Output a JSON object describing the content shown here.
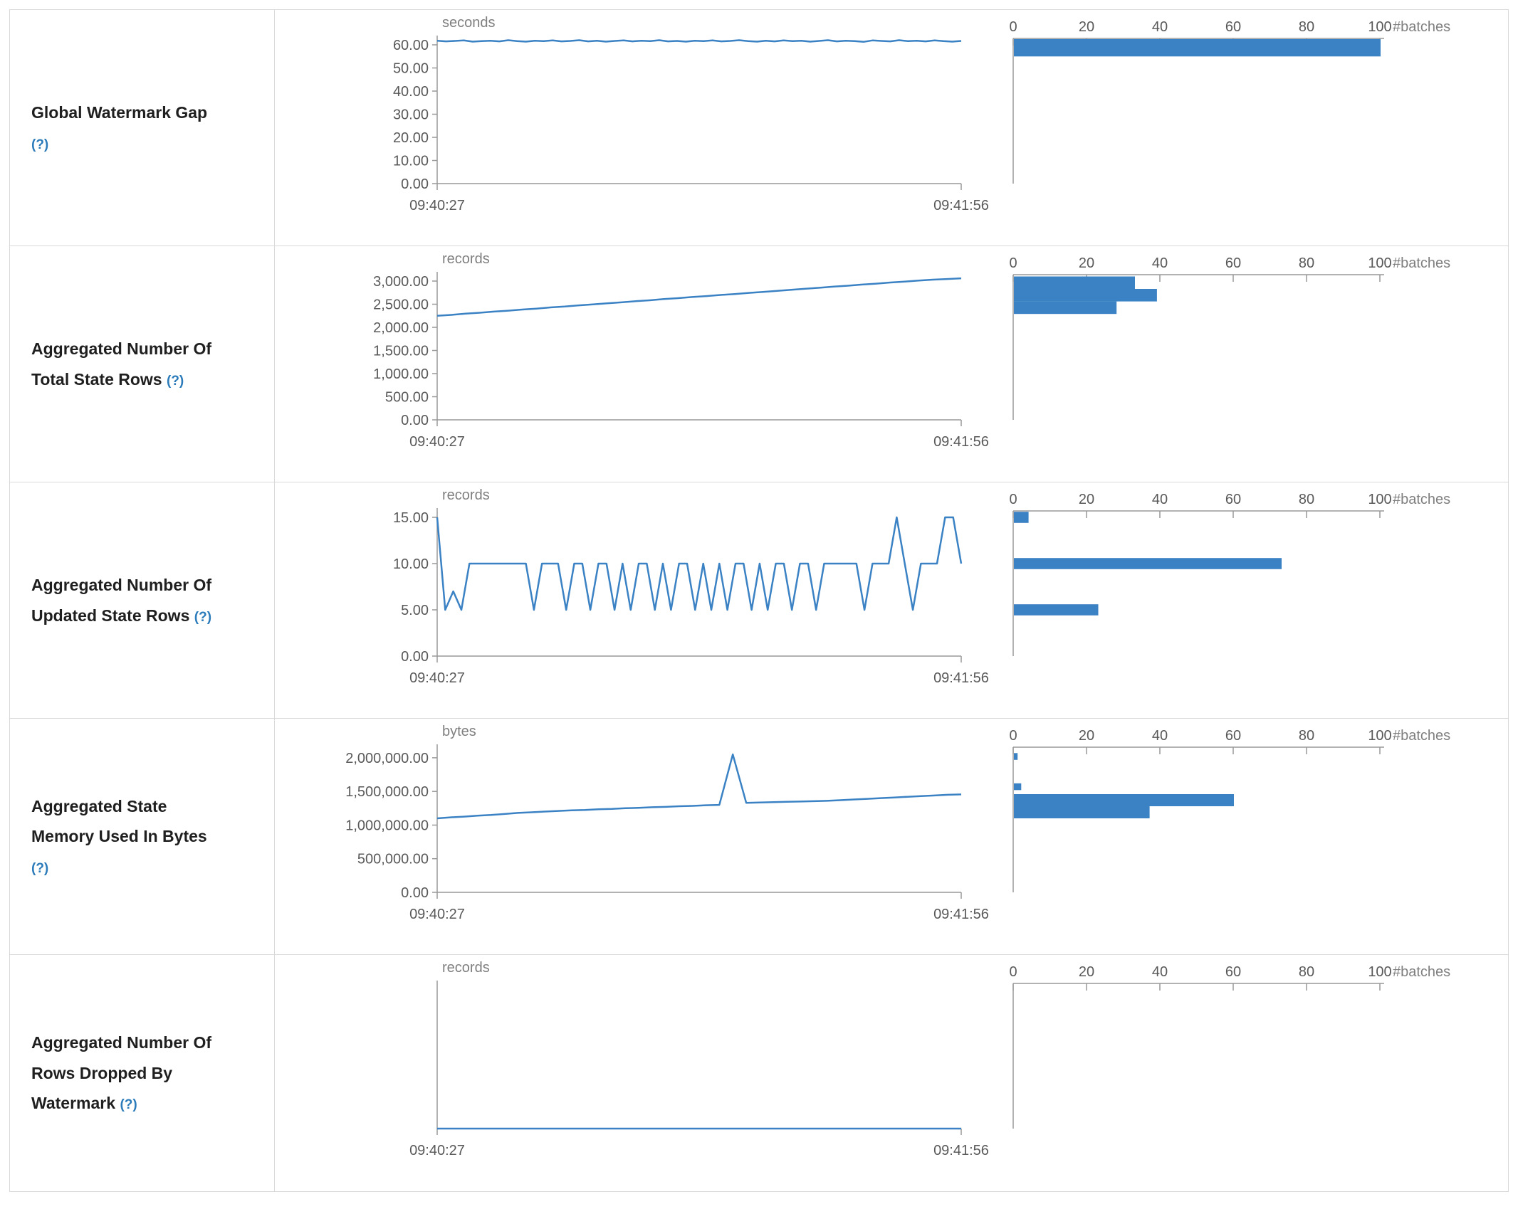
{
  "accent": "#3b82c4",
  "rows": [
    {
      "label": "Global Watermark Gap",
      "help_label": "(?)"
    },
    {
      "label": "Aggregated Number Of Total State Rows",
      "help_label": "(?)"
    },
    {
      "label": "Aggregated Number Of Updated State Rows",
      "help_label": "(?)"
    },
    {
      "label": "Aggregated State Memory Used In Bytes",
      "help_label": "(?)"
    },
    {
      "label": "Aggregated Number Of Rows Dropped By Watermark",
      "help_label": "(?)"
    }
  ],
  "chart_data": [
    {
      "type": "line",
      "title": "Global Watermark Gap",
      "unit": "seconds",
      "x_range": [
        "09:40:27",
        "09:41:56"
      ],
      "ylim": [
        0,
        64
      ],
      "y_ticks": [
        0,
        10,
        20,
        30,
        40,
        50,
        60
      ],
      "y_tick_labels": [
        "0.00",
        "10.00",
        "20.00",
        "30.00",
        "40.00",
        "50.00",
        "60.00"
      ],
      "values": [
        61.8,
        61.5,
        61.7,
        61.9,
        61.4,
        61.6,
        61.8,
        61.5,
        62.0,
        61.6,
        61.4,
        61.8,
        61.6,
        61.9,
        61.5,
        61.7,
        62.0,
        61.5,
        61.8,
        61.4,
        61.7,
        61.9,
        61.5,
        61.8,
        61.6,
        62.0,
        61.5,
        61.7,
        61.4,
        61.8,
        61.6,
        61.9,
        61.5,
        61.7,
        62.0,
        61.6,
        61.4,
        61.8,
        61.5,
        61.9,
        61.6,
        61.8,
        61.4,
        61.7,
        62.0,
        61.5,
        61.8,
        61.6,
        61.3,
        61.9,
        61.7,
        61.5,
        62.0,
        61.6,
        61.8,
        61.5,
        61.9,
        61.6,
        61.4,
        61.7
      ],
      "histogram": {
        "type": "bar",
        "xlabel": "#batches",
        "xlim": [
          0,
          100
        ],
        "x_ticks": [
          0,
          20,
          40,
          60,
          80,
          100
        ],
        "bins": [
          {
            "from": 64,
            "to": 55,
            "count": 100
          }
        ]
      }
    },
    {
      "type": "line",
      "title": "Aggregated Number Of Total State Rows",
      "unit": "records",
      "x_range": [
        "09:40:27",
        "09:41:56"
      ],
      "ylim": [
        0,
        3200
      ],
      "y_ticks": [
        0,
        500,
        1000,
        1500,
        2000,
        2500,
        3000
      ],
      "y_tick_labels": [
        "0.00",
        "500.00",
        "1,000.00",
        "1,500.00",
        "2,000.00",
        "2,500.00",
        "3,000.00"
      ],
      "values": [
        2250,
        2270,
        2295,
        2315,
        2340,
        2360,
        2385,
        2405,
        2430,
        2450,
        2475,
        2495,
        2520,
        2540,
        2565,
        2585,
        2610,
        2630,
        2655,
        2675,
        2700,
        2720,
        2745,
        2765,
        2790,
        2810,
        2835,
        2855,
        2880,
        2900,
        2925,
        2945,
        2970,
        2990,
        3010,
        3030,
        3045,
        3060
      ],
      "histogram": {
        "type": "bar",
        "xlabel": "#batches",
        "xlim": [
          0,
          100
        ],
        "x_ticks": [
          0,
          20,
          40,
          60,
          80,
          100
        ],
        "bins": [
          {
            "from": 3100,
            "to": 2830,
            "count": 33
          },
          {
            "from": 2830,
            "to": 2560,
            "count": 39
          },
          {
            "from": 2560,
            "to": 2290,
            "count": 28
          }
        ]
      }
    },
    {
      "type": "line",
      "title": "Aggregated Number Of Updated State Rows",
      "unit": "records",
      "x_range": [
        "09:40:27",
        "09:41:56"
      ],
      "ylim": [
        0,
        16
      ],
      "y_ticks": [
        0,
        5,
        10,
        15
      ],
      "y_tick_labels": [
        "0.00",
        "5.00",
        "10.00",
        "15.00"
      ],
      "values": [
        15,
        5,
        7,
        5,
        10,
        10,
        10,
        10,
        10,
        10,
        10,
        10,
        5,
        10,
        10,
        10,
        5,
        10,
        10,
        5,
        10,
        10,
        5,
        10,
        5,
        10,
        10,
        5,
        10,
        5,
        10,
        10,
        5,
        10,
        5,
        10,
        5,
        10,
        10,
        5,
        10,
        5,
        10,
        10,
        5,
        10,
        10,
        5,
        10,
        10,
        10,
        10,
        10,
        5,
        10,
        10,
        10,
        15,
        10,
        5,
        10,
        10,
        10,
        15,
        15,
        10
      ],
      "histogram": {
        "type": "bar",
        "xlabel": "#batches",
        "xlim": [
          0,
          100
        ],
        "x_ticks": [
          0,
          20,
          40,
          60,
          80,
          100
        ],
        "bins": [
          {
            "from": 15.6,
            "to": 14.4,
            "count": 4
          },
          {
            "from": 10.6,
            "to": 9.4,
            "count": 73
          },
          {
            "from": 5.6,
            "to": 4.4,
            "count": 23
          }
        ]
      }
    },
    {
      "type": "line",
      "title": "Aggregated State Memory Used In Bytes",
      "unit": "bytes",
      "x_range": [
        "09:40:27",
        "09:41:56"
      ],
      "ylim": [
        0,
        2200000
      ],
      "y_ticks": [
        0,
        500000,
        1000000,
        1500000,
        2000000
      ],
      "y_tick_labels": [
        "0.00",
        "500,000.00",
        "1,000,000.00",
        "1,500,000.00",
        "2,000,000.00"
      ],
      "values": [
        1100000,
        1115000,
        1125000,
        1140000,
        1150000,
        1165000,
        1180000,
        1190000,
        1200000,
        1210000,
        1220000,
        1225000,
        1235000,
        1240000,
        1250000,
        1255000,
        1265000,
        1270000,
        1280000,
        1285000,
        1295000,
        1300000,
        2050000,
        1330000,
        1335000,
        1340000,
        1345000,
        1350000,
        1355000,
        1360000,
        1370000,
        1380000,
        1390000,
        1400000,
        1410000,
        1420000,
        1430000,
        1440000,
        1450000,
        1455000
      ],
      "histogram": {
        "type": "bar",
        "xlabel": "#batches",
        "xlim": [
          0,
          100
        ],
        "x_ticks": [
          0,
          20,
          40,
          60,
          80,
          100
        ],
        "bins": [
          {
            "from": 2070000,
            "to": 1970000,
            "count": 1
          },
          {
            "from": 1620000,
            "to": 1520000,
            "count": 2
          },
          {
            "from": 1460000,
            "to": 1280000,
            "count": 60
          },
          {
            "from": 1280000,
            "to": 1100000,
            "count": 37
          }
        ]
      }
    },
    {
      "type": "line",
      "title": "Aggregated Number Of Rows Dropped By Watermark",
      "unit": "records",
      "x_range": [
        "09:40:27",
        "09:41:56"
      ],
      "ylim": [
        0,
        1
      ],
      "y_ticks": [],
      "y_tick_labels": [],
      "values": [
        0,
        0,
        0,
        0,
        0,
        0,
        0,
        0,
        0,
        0
      ],
      "histogram": {
        "type": "bar",
        "xlabel": "#batches",
        "xlim": [
          0,
          100
        ],
        "x_ticks": [
          0,
          20,
          40,
          60,
          80,
          100
        ],
        "bins": []
      }
    }
  ]
}
